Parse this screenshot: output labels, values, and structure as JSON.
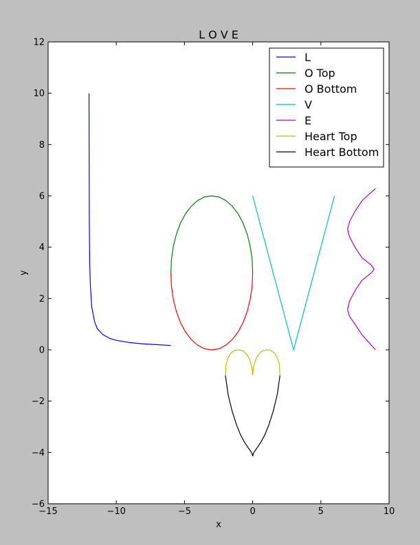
{
  "chart_data": {
    "type": "line",
    "title": "L O V E",
    "xlabel": "x",
    "ylabel": "y",
    "xlim": [
      -15,
      10
    ],
    "ylim": [
      -6,
      12
    ],
    "xticks": [
      -15,
      -10,
      -5,
      0,
      5,
      10
    ],
    "yticks": [
      -6,
      -4,
      -2,
      0,
      2,
      4,
      6,
      8,
      10,
      12
    ],
    "grid": false,
    "legend_position": "top-right",
    "series": [
      {
        "name": "L",
        "color": "#0000ff",
        "points": [
          [
            -12.0,
            10.0
          ],
          [
            -11.98,
            5.0
          ],
          [
            -11.95,
            3.33
          ],
          [
            -11.9,
            2.5
          ],
          [
            -11.8,
            1.67
          ],
          [
            -11.6,
            1.11
          ],
          [
            -11.4,
            0.83
          ],
          [
            -11.0,
            0.6
          ],
          [
            -10.5,
            0.45
          ],
          [
            -10.0,
            0.37
          ],
          [
            -9.0,
            0.28
          ],
          [
            -8.0,
            0.23
          ],
          [
            -7.0,
            0.2
          ],
          [
            -6.0,
            0.17
          ]
        ]
      },
      {
        "name": "O Top",
        "color": "#008000",
        "points": [
          [
            -6.0,
            3.0
          ],
          [
            -5.96,
            3.52
          ],
          [
            -5.82,
            4.03
          ],
          [
            -5.6,
            4.5
          ],
          [
            -5.3,
            4.93
          ],
          [
            -4.93,
            5.3
          ],
          [
            -4.5,
            5.6
          ],
          [
            -4.03,
            5.82
          ],
          [
            -3.52,
            5.96
          ],
          [
            -3.0,
            6.0
          ],
          [
            -2.48,
            5.96
          ],
          [
            -1.97,
            5.82
          ],
          [
            -1.5,
            5.6
          ],
          [
            -1.07,
            5.3
          ],
          [
            -0.7,
            4.93
          ],
          [
            -0.4,
            4.5
          ],
          [
            -0.18,
            4.03
          ],
          [
            -0.04,
            3.52
          ],
          [
            0.0,
            3.0
          ]
        ]
      },
      {
        "name": "O Bottom",
        "color": "#ff0000",
        "points": [
          [
            -6.0,
            3.0
          ],
          [
            -5.96,
            2.48
          ],
          [
            -5.82,
            1.97
          ],
          [
            -5.6,
            1.5
          ],
          [
            -5.3,
            1.07
          ],
          [
            -4.93,
            0.7
          ],
          [
            -4.5,
            0.4
          ],
          [
            -4.03,
            0.18
          ],
          [
            -3.52,
            0.04
          ],
          [
            -3.0,
            0.0
          ],
          [
            -2.48,
            0.04
          ],
          [
            -1.97,
            0.18
          ],
          [
            -1.5,
            0.4
          ],
          [
            -1.07,
            0.7
          ],
          [
            -0.7,
            1.07
          ],
          [
            -0.4,
            1.5
          ],
          [
            -0.18,
            1.97
          ],
          [
            -0.04,
            2.48
          ],
          [
            0.0,
            3.0
          ]
        ]
      },
      {
        "name": "V",
        "color": "#00bfbf",
        "points": [
          [
            0.0,
            6.0
          ],
          [
            3.0,
            0.0
          ],
          [
            6.0,
            6.0
          ]
        ]
      },
      {
        "name": "E",
        "color": "#bf00bf",
        "points": [
          [
            9.0,
            0.0
          ],
          [
            8.5,
            0.3
          ],
          [
            8.0,
            0.6
          ],
          [
            7.5,
            1.0
          ],
          [
            7.1,
            1.3
          ],
          [
            6.95,
            1.57
          ],
          [
            7.1,
            1.9
          ],
          [
            7.5,
            2.3
          ],
          [
            8.0,
            2.7
          ],
          [
            8.7,
            3.0
          ],
          [
            8.9,
            3.14
          ],
          [
            8.7,
            3.3
          ],
          [
            8.0,
            3.6
          ],
          [
            7.5,
            4.0
          ],
          [
            7.1,
            4.4
          ],
          [
            6.95,
            4.71
          ],
          [
            7.1,
            5.0
          ],
          [
            7.5,
            5.4
          ],
          [
            8.0,
            5.8
          ],
          [
            8.5,
            6.05
          ],
          [
            9.0,
            6.28
          ]
        ]
      },
      {
        "name": "Heart Top",
        "color": "#bfbf00",
        "points": [
          [
            -2.0,
            -1.0
          ],
          [
            -1.95,
            -0.55
          ],
          [
            -1.8,
            -0.3
          ],
          [
            -1.6,
            -0.12
          ],
          [
            -1.3,
            -0.02
          ],
          [
            -1.0,
            0.0
          ],
          [
            -0.7,
            -0.04
          ],
          [
            -0.4,
            -0.2
          ],
          [
            -0.2,
            -0.4
          ],
          [
            -0.05,
            -0.7
          ],
          [
            0.0,
            -1.0
          ],
          [
            0.05,
            -0.7
          ],
          [
            0.2,
            -0.4
          ],
          [
            0.4,
            -0.2
          ],
          [
            0.7,
            -0.04
          ],
          [
            1.0,
            0.0
          ],
          [
            1.3,
            -0.02
          ],
          [
            1.6,
            -0.12
          ],
          [
            1.8,
            -0.3
          ],
          [
            1.95,
            -0.55
          ],
          [
            2.0,
            -1.0
          ]
        ]
      },
      {
        "name": "Heart Bottom",
        "color": "#000000",
        "points": [
          [
            -2.0,
            -1.0
          ],
          [
            -1.8,
            -1.75
          ],
          [
            -1.5,
            -2.4
          ],
          [
            -1.2,
            -2.9
          ],
          [
            -0.9,
            -3.3
          ],
          [
            -0.6,
            -3.6
          ],
          [
            -0.35,
            -3.8
          ],
          [
            -0.15,
            -3.95
          ],
          [
            -0.04,
            -4.05
          ],
          [
            0.0,
            -4.15
          ],
          [
            0.04,
            -4.05
          ],
          [
            0.15,
            -3.95
          ],
          [
            0.35,
            -3.8
          ],
          [
            0.6,
            -3.6
          ],
          [
            0.9,
            -3.3
          ],
          [
            1.2,
            -2.9
          ],
          [
            1.5,
            -2.4
          ],
          [
            1.8,
            -1.75
          ],
          [
            2.0,
            -1.0
          ]
        ]
      }
    ]
  }
}
